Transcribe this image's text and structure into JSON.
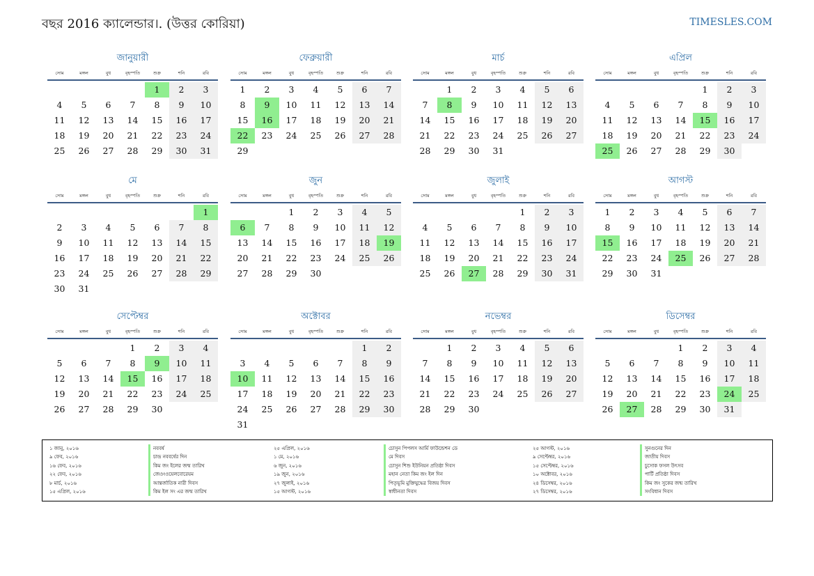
{
  "header": {
    "title": "বছর 2016 ক্যালেন্ডার।. (উত্তর কোরিয়া)",
    "site": "TIMESLES.COM"
  },
  "weekdays": [
    "সোম",
    "মঙ্গল",
    "বুধ",
    "বৃহস্পতি",
    "শুক্র",
    "শনি",
    "রবি"
  ],
  "colors": {
    "accent": "#2e6ea6",
    "weekend_bg": "#efefef",
    "holiday_bg": "#90ee90",
    "rule": "#3b5b86"
  },
  "months": [
    {
      "name": "জানুয়ারী",
      "offset": 4,
      "days": 31,
      "holidays": [
        1
      ]
    },
    {
      "name": "ফেব্রুয়ারী",
      "offset": 0,
      "days": 29,
      "holidays": [
        9,
        16,
        22
      ]
    },
    {
      "name": "মার্চ",
      "offset": 1,
      "days": 31,
      "holidays": [
        8
      ]
    },
    {
      "name": "এপ্রিল",
      "offset": 4,
      "days": 30,
      "holidays": [
        15,
        25
      ]
    },
    {
      "name": "মে",
      "offset": 6,
      "days": 31,
      "holidays": [
        1
      ]
    },
    {
      "name": "জুন",
      "offset": 2,
      "days": 30,
      "holidays": [
        6,
        19
      ]
    },
    {
      "name": "জুলাই",
      "offset": 4,
      "days": 31,
      "holidays": [
        27
      ]
    },
    {
      "name": "আগস্ট",
      "offset": 0,
      "days": 31,
      "holidays": [
        15,
        25
      ]
    },
    {
      "name": "সেপ্টেম্বর",
      "offset": 3,
      "days": 30,
      "holidays": [
        9,
        15
      ]
    },
    {
      "name": "অক্টোবর",
      "offset": 5,
      "days": 31,
      "holidays": [
        10
      ]
    },
    {
      "name": "নভেম্বর",
      "offset": 1,
      "days": 30,
      "holidays": []
    },
    {
      "name": "ডিসেম্বর",
      "offset": 3,
      "days": 31,
      "holidays": [
        24,
        27
      ]
    }
  ],
  "holiday_list": [
    {
      "date": "১ জানু, ২০১৬",
      "name": "নববর্ষ"
    },
    {
      "date": "৯ ফেব, ২০১৬",
      "name": "চান্দ্র নববর্ষের দিন"
    },
    {
      "date": "১৬ ফেব, ২০১৬",
      "name": "কিম জং ইলের জন্ম তারিখ"
    },
    {
      "date": "২২ ফেব, ২০১৬",
      "name": "জেওংওয়েলবোরেয়ম"
    },
    {
      "date": "৮ মার্চ, ২০১৬",
      "name": "আন্তর্জাতিক নারী দিবস"
    },
    {
      "date": "১৫ এপ্রিল, ২০১৬",
      "name": "কিম ইল সং এর জন্ম তারিখ"
    },
    {
      "date": "২৫ এপ্রিল, ২০১৬",
      "name": "চোসুন পিপলস আর্মি ফাউন্ডেশন ডে"
    },
    {
      "date": "১ মে, ২০১৬",
      "name": "মে দিবস"
    },
    {
      "date": "৬ জুন, ২০১৬",
      "name": "চোসুন শিশু ইউনিয়ন প্রতিষ্ঠা দিবস"
    },
    {
      "date": "১৯ জুন, ২০১৬",
      "name": "মহান নেতা কিম জং ইল দিন"
    },
    {
      "date": "২৭ জুলাই, ২০১৬",
      "name": "পিতৃভূমি মুক্তিযুদ্ধের বিজয় দিবস"
    },
    {
      "date": "১৫ আগস্ট, ২০১৬",
      "name": "স্বাধীনতা দিবস"
    },
    {
      "date": "২৫ আগস্ট, ২০১৬",
      "name": "সুনগুনের দিন"
    },
    {
      "date": "৯ সেপ্টেম্বর, ২০১৬",
      "name": "জাতীয় দিবস"
    },
    {
      "date": "১৫ সেপ্টেম্বর, ২০১৬",
      "name": "চুসোক ফসল উৎসব"
    },
    {
      "date": "১০ অক্টোবর, ২০১৬",
      "name": "পার্টি প্রতিষ্ঠা দিবস"
    },
    {
      "date": "২৪ ডিসেম্বর, ২০১৬",
      "name": "কিম জং সুকের জন্ম তারিখ"
    },
    {
      "date": "২৭ ডিসেম্বর, ২০১৬",
      "name": "সংবিধান দিবস"
    }
  ]
}
